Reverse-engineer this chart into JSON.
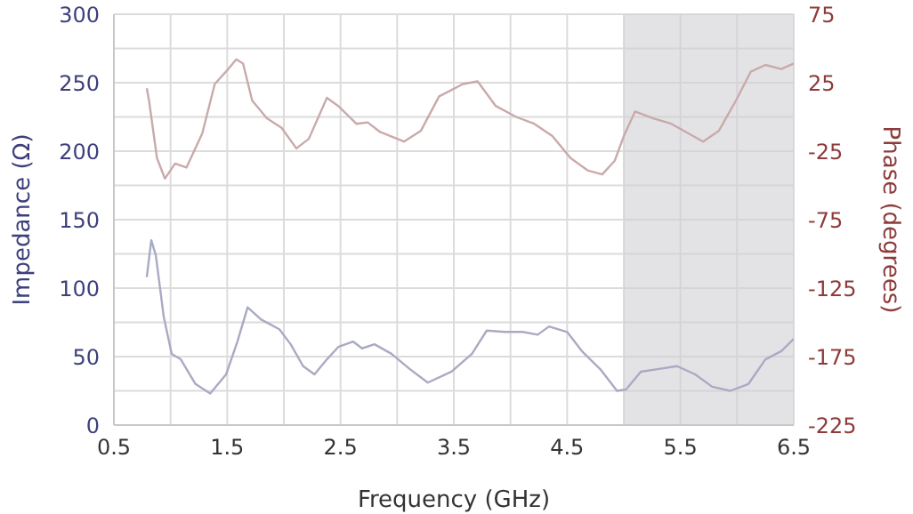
{
  "chart_data": {
    "type": "line",
    "xlabel": "Frequency (GHz)",
    "ylabel": "Impedance (Ω)",
    "y2label": "Phase (degrees)",
    "xlim": [
      0.5,
      6.5
    ],
    "xticks": [
      0.5,
      {
        "value": 1,
        "label": null
      },
      1.5,
      {
        "value": 2,
        "label": null
      },
      2.5,
      {
        "value": 3,
        "label": null
      },
      3.5,
      {
        "value": 4,
        "label": null
      },
      4.5,
      {
        "value": 5,
        "label": null
      },
      5.5,
      {
        "value": 6,
        "label": null
      },
      6.5
    ],
    "ylim": [
      0,
      300
    ],
    "yticks": [
      0,
      {
        "value": 25,
        "label": null
      },
      50,
      {
        "value": 75,
        "label": null
      },
      100,
      {
        "value": 125,
        "label": null
      },
      150,
      {
        "value": 175,
        "label": null
      },
      200,
      {
        "value": 225,
        "label": null
      },
      250,
      {
        "value": 275,
        "label": null
      },
      300
    ],
    "y2lim": [
      -225,
      75
    ],
    "y2ticks": [
      -225,
      -175,
      -125,
      -75,
      -25,
      25,
      75
    ],
    "grid": true,
    "bands": [
      {
        "axis": "x",
        "from": 5,
        "to": 6.5,
        "color": "#d0d0d4"
      }
    ],
    "series": [
      {
        "color": "#a9aac4",
        "x": [
          0.79,
          0.83,
          0.87,
          0.94,
          1.01,
          1.09,
          1.22,
          1.35,
          1.49,
          1.59,
          1.68,
          1.8,
          1.96,
          2.06,
          2.17,
          2.27,
          2.38,
          2.48,
          2.61,
          2.69,
          2.8,
          2.95,
          3.11,
          3.27,
          3.48,
          3.66,
          3.79,
          3.95,
          4.11,
          4.24,
          4.34,
          4.5,
          4.63,
          4.79,
          4.94,
          5.02,
          5.15,
          5.31,
          5.47,
          5.63,
          5.78,
          5.94,
          6.1,
          6.25,
          6.39,
          6.5
        ],
        "values": [
          108,
          135,
          124,
          79,
          52,
          48,
          30,
          23,
          37,
          61,
          86,
          77,
          70,
          59,
          43,
          37,
          48,
          57,
          61,
          56,
          59,
          52,
          41,
          31,
          39,
          52,
          69,
          68,
          68,
          66,
          72,
          68,
          54,
          41,
          25,
          26,
          39,
          41,
          43,
          37,
          28,
          25,
          30,
          48,
          54,
          63
        ]
      },
      {
        "color": "#c9aaaa",
        "axis": "y2",
        "x": [
          0.79,
          0.81,
          0.88,
          0.95,
          1.04,
          1.14,
          1.28,
          1.39,
          1.51,
          1.58,
          1.64,
          1.72,
          1.85,
          1.98,
          2.11,
          2.22,
          2.38,
          2.48,
          2.64,
          2.74,
          2.85,
          3.06,
          3.21,
          3.37,
          3.58,
          3.71,
          3.87,
          4.05,
          4.21,
          4.37,
          4.53,
          4.68,
          4.81,
          4.92,
          5.0,
          5.1,
          5.26,
          5.42,
          5.57,
          5.7,
          5.84,
          5.99,
          6.12,
          6.25,
          6.39,
          6.5
        ],
        "values": [
          21,
          12,
          -30,
          -45,
          -34,
          -37,
          -12,
          24,
          35,
          42,
          39,
          12,
          -1,
          -8,
          -23,
          -16,
          14,
          8,
          -5,
          -4,
          -11,
          -18,
          -10,
          15,
          24,
          26,
          8,
          0,
          -5,
          -14,
          -30,
          -39,
          -42,
          -32,
          -14,
          4,
          -1,
          -5,
          -12,
          -18,
          -10,
          12,
          33,
          38,
          35,
          39
        ]
      }
    ]
  }
}
